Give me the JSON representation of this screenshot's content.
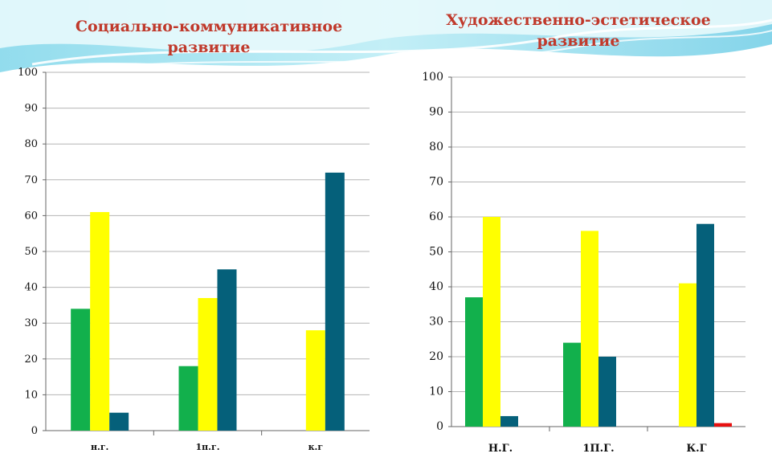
{
  "colors": {
    "green": "#12b04c",
    "yellow": "#ffff00",
    "teal": "#05607a",
    "red": "#e81010",
    "title": "#c0392b",
    "grid": "#9a9a9a"
  },
  "chart_data": [
    {
      "type": "bar",
      "title": "Социально-коммуникативное развитие",
      "title_lines": [
        "Социально-коммуникативное",
        "развитие"
      ],
      "categories": [
        "н.г.",
        "1п.г.",
        "к.г"
      ],
      "ylim": [
        0,
        100
      ],
      "yticks": [
        0,
        10,
        20,
        30,
        40,
        50,
        60,
        70,
        80,
        90,
        100
      ],
      "grid": true,
      "legend": "none",
      "series": [
        {
          "color": "#12b04c",
          "values": [
            34,
            18,
            0
          ]
        },
        {
          "color": "#ffff00",
          "values": [
            61,
            37,
            28
          ]
        },
        {
          "color": "#05607a",
          "values": [
            5,
            45,
            72
          ]
        }
      ]
    },
    {
      "type": "bar",
      "title": "Художественно-эстетическое развитие",
      "title_lines": [
        "Художественно-эстетическое",
        "развитие"
      ],
      "categories": [
        "Н.Г.",
        "1П.Г.",
        "К.Г"
      ],
      "ylim": [
        0,
        100
      ],
      "yticks": [
        0,
        10,
        20,
        30,
        40,
        50,
        60,
        70,
        80,
        90,
        100
      ],
      "grid": true,
      "legend": "none",
      "series": [
        {
          "color": "#12b04c",
          "values": [
            37,
            24,
            0
          ]
        },
        {
          "color": "#ffff00",
          "values": [
            60,
            56,
            41
          ]
        },
        {
          "color": "#05607a",
          "values": [
            3,
            20,
            58
          ]
        },
        {
          "color": "#e81010",
          "values": [
            0,
            0,
            1
          ]
        }
      ]
    }
  ]
}
